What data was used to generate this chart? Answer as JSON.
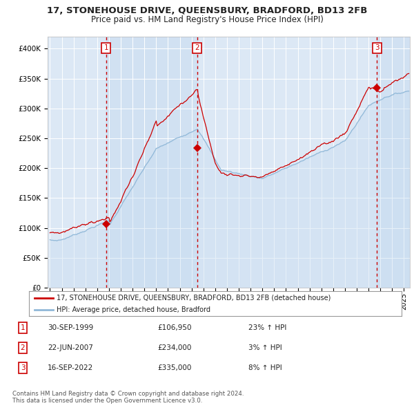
{
  "title": "17, STONEHOUSE DRIVE, QUEENSBURY, BRADFORD, BD13 2FB",
  "subtitle": "Price paid vs. HM Land Registry's House Price Index (HPI)",
  "ylim": [
    0,
    420000
  ],
  "yticks": [
    0,
    50000,
    100000,
    150000,
    200000,
    250000,
    300000,
    350000,
    400000
  ],
  "ytick_labels": [
    "£0",
    "£50K",
    "£100K",
    "£150K",
    "£200K",
    "£250K",
    "£300K",
    "£350K",
    "£400K"
  ],
  "xlim_start": 1994.8,
  "xlim_end": 2025.5,
  "background_color": "#dce8f5",
  "plot_bg_color": "#dce8f5",
  "sale_color": "#cc0000",
  "hpi_line_color": "#90b8d8",
  "sale1_x": 1999.75,
  "sale1_y": 106950,
  "sale2_x": 2007.47,
  "sale2_y": 234000,
  "sale3_x": 2022.71,
  "sale3_y": 335000,
  "annotation1": {
    "label": "1",
    "date": "30-SEP-1999",
    "price": "£106,950",
    "hpi": "23% ↑ HPI"
  },
  "annotation2": {
    "label": "2",
    "date": "22-JUN-2007",
    "price": "£234,000",
    "hpi": "3% ↑ HPI"
  },
  "annotation3": {
    "label": "3",
    "date": "16-SEP-2022",
    "price": "£335,000",
    "hpi": "8% ↑ HPI"
  },
  "legend_line1": "17, STONEHOUSE DRIVE, QUEENSBURY, BRADFORD, BD13 2FB (detached house)",
  "legend_line2": "HPI: Average price, detached house, Bradford",
  "footer1": "Contains HM Land Registry data © Crown copyright and database right 2024.",
  "footer2": "This data is licensed under the Open Government Licence v3.0."
}
